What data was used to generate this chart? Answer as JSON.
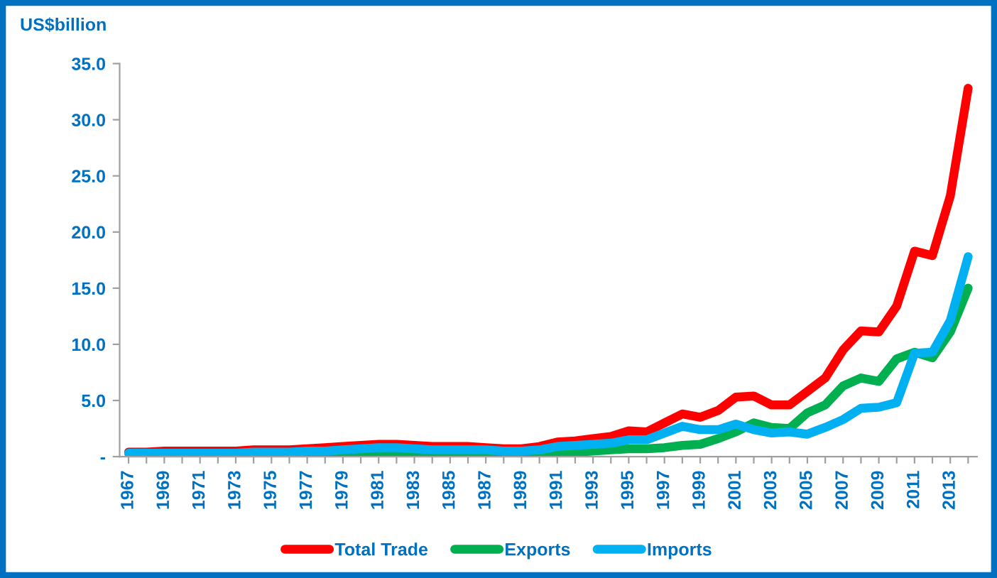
{
  "chart_data": {
    "type": "line",
    "ylabel": "US$billion",
    "categories": [
      "1967",
      null,
      "1969",
      null,
      "1971",
      null,
      "1973",
      null,
      "1975",
      null,
      "1977",
      null,
      "1979",
      null,
      "1981",
      null,
      "1983",
      null,
      "1985",
      null,
      "1987",
      null,
      "1989",
      null,
      "1991",
      null,
      "1993",
      null,
      "1995",
      null,
      "1997",
      null,
      "1999",
      null,
      "2001",
      null,
      "2003",
      null,
      "2005",
      null,
      "2007",
      null,
      "2009",
      null,
      "2011",
      null,
      "2013",
      null
    ],
    "series": [
      {
        "name": "Total Trade",
        "color": "#ff0000",
        "values": [
          0.4,
          0.4,
          0.5,
          0.5,
          0.5,
          0.5,
          0.5,
          0.6,
          0.6,
          0.6,
          0.7,
          0.8,
          0.9,
          1.0,
          1.1,
          1.1,
          1.0,
          0.9,
          0.9,
          0.9,
          0.8,
          0.7,
          0.7,
          0.9,
          1.3,
          1.4,
          1.6,
          1.8,
          2.3,
          2.2,
          3.0,
          3.8,
          3.5,
          4.1,
          5.3,
          5.4,
          4.6,
          4.6,
          5.8,
          7.0,
          9.5,
          11.2,
          11.1,
          13.4,
          18.3,
          17.9,
          23.2,
          32.8
        ]
      },
      {
        "name": "Exports",
        "color": "#00b050",
        "values": [
          null,
          null,
          null,
          null,
          null,
          null,
          null,
          null,
          null,
          null,
          0.2,
          0.3,
          0.3,
          0.3,
          0.3,
          0.3,
          0.3,
          0.3,
          0.3,
          0.3,
          0.2,
          0.2,
          0.2,
          0.3,
          0.4,
          0.4,
          0.5,
          0.6,
          0.7,
          0.7,
          0.8,
          1.0,
          1.1,
          1.6,
          2.2,
          3.0,
          2.6,
          2.5,
          3.9,
          4.6,
          6.3,
          7.0,
          6.7,
          8.7,
          9.3,
          8.8,
          11.1,
          15.0
        ]
      },
      {
        "name": "Imports",
        "color": "#00b0f0",
        "values": [
          0.3,
          0.3,
          0.3,
          0.3,
          0.3,
          0.3,
          0.3,
          0.4,
          0.4,
          0.4,
          0.5,
          0.5,
          0.6,
          0.7,
          0.8,
          0.8,
          0.7,
          0.6,
          0.6,
          0.6,
          0.6,
          0.5,
          0.5,
          0.6,
          0.9,
          1.0,
          1.1,
          1.2,
          1.5,
          1.5,
          2.1,
          2.7,
          2.4,
          2.4,
          2.9,
          2.4,
          2.1,
          2.2,
          2.0,
          2.6,
          3.3,
          4.3,
          4.4,
          4.8,
          9.2,
          9.3,
          12.1,
          17.8
        ]
      }
    ],
    "ylim": [
      0,
      35
    ],
    "yticks": [
      {
        "value": 0,
        "label": "-"
      },
      {
        "value": 5,
        "label": "5.0"
      },
      {
        "value": 10,
        "label": "10.0"
      },
      {
        "value": 15,
        "label": "15.0"
      },
      {
        "value": 20,
        "label": "20.0"
      },
      {
        "value": 25,
        "label": "25.0"
      },
      {
        "value": 30,
        "label": "30.0"
      },
      {
        "value": 35,
        "label": "35.0"
      }
    ],
    "grid": false,
    "legend": "bottom",
    "marker": "none",
    "line_style": "solid"
  }
}
